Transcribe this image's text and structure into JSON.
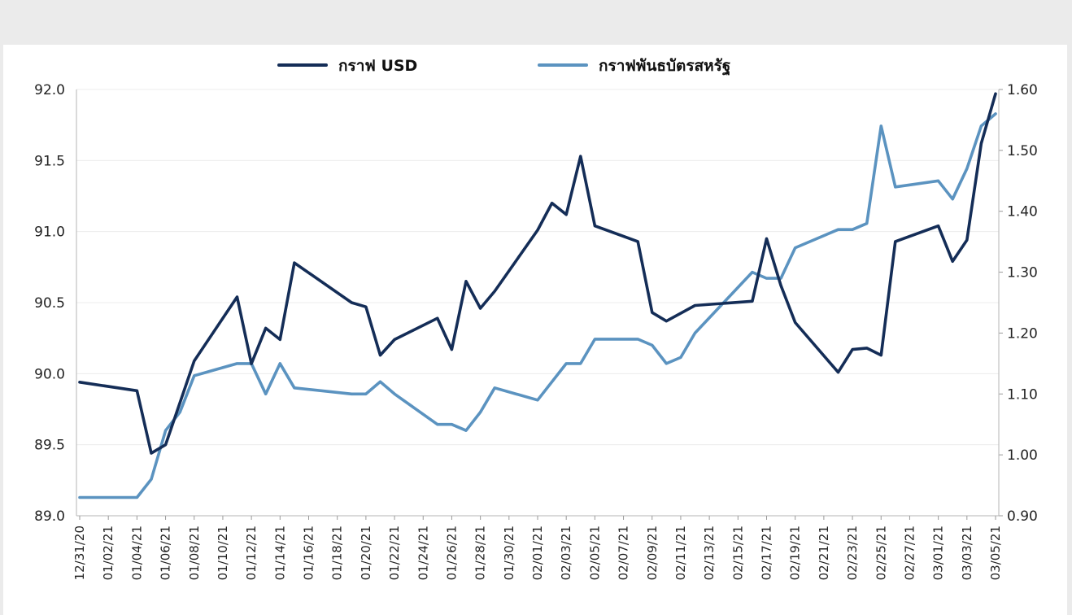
{
  "chart_data": {
    "type": "line",
    "legend_position": "top",
    "grid": true,
    "x": [
      "12/31/20",
      "01/01/21",
      "01/02/21",
      "01/03/21",
      "01/04/21",
      "01/05/21",
      "01/06/21",
      "01/07/21",
      "01/08/21",
      "01/09/21",
      "01/10/21",
      "01/11/21",
      "01/12/21",
      "01/13/21",
      "01/14/21",
      "01/15/21",
      "01/16/21",
      "01/17/21",
      "01/18/21",
      "01/19/21",
      "01/20/21",
      "01/21/21",
      "01/22/21",
      "01/23/21",
      "01/24/21",
      "01/25/21",
      "01/26/21",
      "01/27/21",
      "01/28/21",
      "01/29/21",
      "01/30/21",
      "01/31/21",
      "02/01/21",
      "02/02/21",
      "02/03/21",
      "02/04/21",
      "02/05/21",
      "02/06/21",
      "02/07/21",
      "02/08/21",
      "02/09/21",
      "02/10/21",
      "02/11/21",
      "02/12/21",
      "02/13/21",
      "02/14/21",
      "02/15/21",
      "02/16/21",
      "02/17/21",
      "02/18/21",
      "02/19/21",
      "02/20/21",
      "02/21/21",
      "02/22/21",
      "02/23/21",
      "02/24/21",
      "02/25/21",
      "02/26/21",
      "02/27/21",
      "02/28/21",
      "03/01/21",
      "03/02/21",
      "03/03/21",
      "03/04/21",
      "03/05/21"
    ],
    "x_tick_labels": [
      "12/31/20",
      "01/02/21",
      "01/04/21",
      "01/06/21",
      "01/08/21",
      "01/10/21",
      "01/12/21",
      "01/14/21",
      "01/16/21",
      "01/18/21",
      "01/20/21",
      "01/22/21",
      "01/24/21",
      "01/26/21",
      "01/28/21",
      "01/30/21",
      "02/01/21",
      "02/03/21",
      "02/05/21",
      "02/07/21",
      "02/09/21",
      "02/11/21",
      "02/13/21",
      "02/15/21",
      "02/17/21",
      "02/19/21",
      "02/21/21",
      "02/23/21",
      "02/25/21",
      "02/27/21",
      "03/01/21",
      "03/03/21",
      "03/05/21"
    ],
    "y_left": {
      "lim": [
        89.0,
        92.0
      ],
      "ticks": [
        "89.0",
        "89.5",
        "90.0",
        "90.5",
        "91.0",
        "91.5",
        "92.0"
      ]
    },
    "y_right": {
      "lim": [
        0.9,
        1.6
      ],
      "ticks": [
        "0.90",
        "1.00",
        "1.10",
        "1.20",
        "1.30",
        "1.40",
        "1.50",
        "1.60"
      ]
    },
    "series": [
      {
        "name": "กราฟ USD",
        "axis": "left",
        "color": "#142d57",
        "points": [
          [
            "12/31/20",
            89.94
          ],
          [
            "01/04/21",
            89.88
          ],
          [
            "01/05/21",
            89.44
          ],
          [
            "01/06/21",
            89.5
          ],
          [
            "01/08/21",
            90.09
          ],
          [
            "01/11/21",
            90.54
          ],
          [
            "01/12/21",
            90.07
          ],
          [
            "01/13/21",
            90.32
          ],
          [
            "01/14/21",
            90.24
          ],
          [
            "01/15/21",
            90.78
          ],
          [
            "01/19/21",
            90.5
          ],
          [
            "01/20/21",
            90.47
          ],
          [
            "01/21/21",
            90.13
          ],
          [
            "01/22/21",
            90.24
          ],
          [
            "01/25/21",
            90.39
          ],
          [
            "01/26/21",
            90.17
          ],
          [
            "01/27/21",
            90.65
          ],
          [
            "01/28/21",
            90.46
          ],
          [
            "01/29/21",
            90.58
          ],
          [
            "02/01/21",
            91.01
          ],
          [
            "02/02/21",
            91.2
          ],
          [
            "02/03/21",
            91.12
          ],
          [
            "02/04/21",
            91.53
          ],
          [
            "02/05/21",
            91.04
          ],
          [
            "02/08/21",
            90.93
          ],
          [
            "02/09/21",
            90.43
          ],
          [
            "02/10/21",
            90.37
          ],
          [
            "02/12/21",
            90.48
          ],
          [
            "02/16/21",
            90.51
          ],
          [
            "02/17/21",
            90.95
          ],
          [
            "02/18/21",
            90.62
          ],
          [
            "02/19/21",
            90.36
          ],
          [
            "02/22/21",
            90.01
          ],
          [
            "02/23/21",
            90.17
          ],
          [
            "02/24/21",
            90.18
          ],
          [
            "02/25/21",
            90.13
          ],
          [
            "02/26/21",
            90.93
          ],
          [
            "03/01/21",
            91.04
          ],
          [
            "03/02/21",
            90.79
          ],
          [
            "03/03/21",
            90.94
          ],
          [
            "03/04/21",
            91.62
          ],
          [
            "03/05/21",
            91.97
          ]
        ]
      },
      {
        "name": "กราฟพันธบัตรสหรัฐ",
        "axis": "right",
        "color": "#5b93c0",
        "points": [
          [
            "12/31/20",
            0.93
          ],
          [
            "01/04/21",
            0.93
          ],
          [
            "01/05/21",
            0.96
          ],
          [
            "01/06/21",
            1.04
          ],
          [
            "01/07/21",
            1.07
          ],
          [
            "01/08/21",
            1.13
          ],
          [
            "01/11/21",
            1.15
          ],
          [
            "01/12/21",
            1.15
          ],
          [
            "01/13/21",
            1.1
          ],
          [
            "01/14/21",
            1.15
          ],
          [
            "01/15/21",
            1.11
          ],
          [
            "01/19/21",
            1.1
          ],
          [
            "01/20/21",
            1.1
          ],
          [
            "01/21/21",
            1.12
          ],
          [
            "01/22/21",
            1.1
          ],
          [
            "01/25/21",
            1.05
          ],
          [
            "01/26/21",
            1.05
          ],
          [
            "01/27/21",
            1.04
          ],
          [
            "01/28/21",
            1.07
          ],
          [
            "01/29/21",
            1.11
          ],
          [
            "02/01/21",
            1.09
          ],
          [
            "02/03/21",
            1.15
          ],
          [
            "02/04/21",
            1.15
          ],
          [
            "02/05/21",
            1.19
          ],
          [
            "02/08/21",
            1.19
          ],
          [
            "02/09/21",
            1.18
          ],
          [
            "02/10/21",
            1.15
          ],
          [
            "02/11/21",
            1.16
          ],
          [
            "02/12/21",
            1.2
          ],
          [
            "02/16/21",
            1.3
          ],
          [
            "02/17/21",
            1.29
          ],
          [
            "02/18/21",
            1.29
          ],
          [
            "02/19/21",
            1.34
          ],
          [
            "02/22/21",
            1.37
          ],
          [
            "02/23/21",
            1.37
          ],
          [
            "02/24/21",
            1.38
          ],
          [
            "02/25/21",
            1.54
          ],
          [
            "02/26/21",
            1.44
          ],
          [
            "03/01/21",
            1.45
          ],
          [
            "03/02/21",
            1.42
          ],
          [
            "03/03/21",
            1.47
          ],
          [
            "03/04/21",
            1.54
          ],
          [
            "03/05/21",
            1.56
          ]
        ]
      }
    ]
  }
}
